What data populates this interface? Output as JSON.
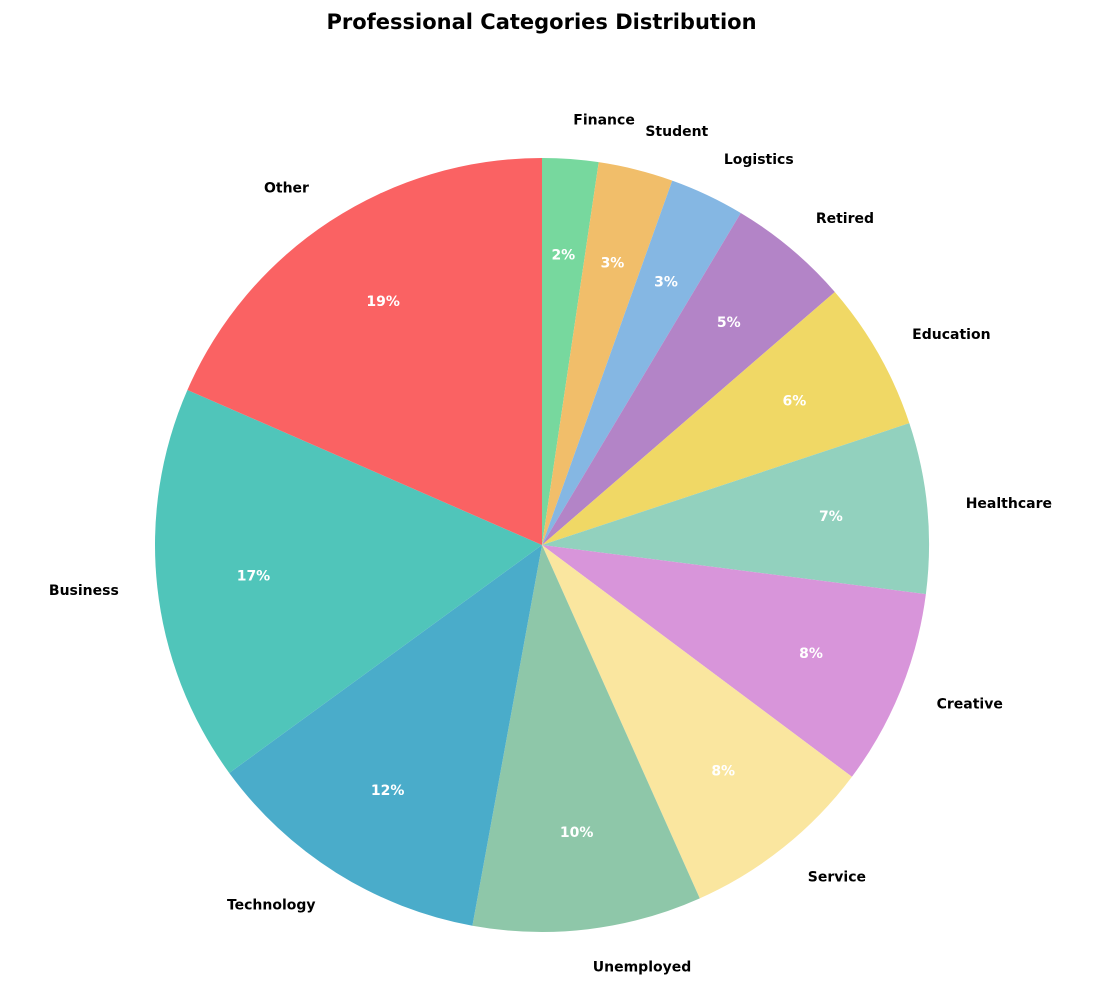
{
  "chart_data": {
    "type": "pie",
    "title": "Professional Categories Distribution",
    "start_angle_deg": 90,
    "direction": "clockwise",
    "slices": [
      {
        "label": "Finance",
        "value": 2.4,
        "pct_label": "2%",
        "color": "#77D89E"
      },
      {
        "label": "Student",
        "value": 3.2,
        "pct_label": "3%",
        "color": "#F1BE6A"
      },
      {
        "label": "Logistics",
        "value": 3.2,
        "pct_label": "3%",
        "color": "#85B7E3"
      },
      {
        "label": "Retired",
        "value": 5.2,
        "pct_label": "5%",
        "color": "#B384C7"
      },
      {
        "label": "Education",
        "value": 6.4,
        "pct_label": "6%",
        "color": "#F0D865"
      },
      {
        "label": "Healthcare",
        "value": 7.3,
        "pct_label": "7%",
        "color": "#92D1BE"
      },
      {
        "label": "Creative",
        "value": 8.4,
        "pct_label": "8%",
        "color": "#D895DA"
      },
      {
        "label": "Service",
        "value": 8.3,
        "pct_label": "8%",
        "color": "#FAE69F"
      },
      {
        "label": "Unemployed",
        "value": 9.8,
        "pct_label": "10%",
        "color": "#8EC7A9"
      },
      {
        "label": "Technology",
        "value": 12.4,
        "pct_label": "12%",
        "color": "#4AACCA"
      },
      {
        "label": "Business",
        "value": 17.0,
        "pct_label": "17%",
        "color": "#50C5BA"
      },
      {
        "label": "Other",
        "value": 18.9,
        "pct_label": "19%",
        "color": "#FA6263"
      }
    ]
  }
}
